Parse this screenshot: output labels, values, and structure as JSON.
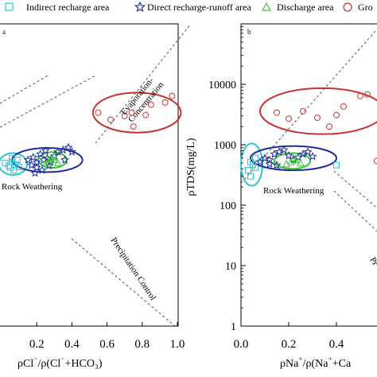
{
  "legend": {
    "entries": [
      {
        "label": "Indirect recharge area",
        "marker": "square-open",
        "color": "#29c5d6"
      },
      {
        "label": "Direct recharge-runoff area",
        "marker": "star-open",
        "color": "#1c2d9e"
      },
      {
        "label": "Discharge area",
        "marker": "triangle-open",
        "color": "#3cc23c"
      },
      {
        "label": "Gro",
        "marker": "circle-open",
        "color": "#c83232"
      }
    ]
  },
  "chart_data": [
    {
      "type": "scatter",
      "panel_label": "a",
      "xlabel_parts": [
        "ρCl",
        "⁻",
        "/ρ(Cl",
        "⁻",
        "+HCO",
        "₃",
        ")"
      ],
      "xlim": [
        0.0,
        1.0
      ],
      "x_ticks": [
        0.2,
        0.4,
        0.6,
        0.8,
        1.0
      ],
      "x_tick_labels": [
        "0.2",
        "0.4",
        "0.6",
        "0.8",
        "1.0"
      ],
      "ylog": true,
      "ylim": [
        1,
        100000
      ],
      "annotations": [
        "Evaporation-Concentration",
        "Rock Weathering",
        "Precipitation Control"
      ],
      "series": [
        {
          "name": "Indirect recharge area",
          "marker": "square",
          "color": "#29c5d6",
          "points": [
            [
              0.05,
              420
            ],
            [
              0.06,
              520
            ],
            [
              0.08,
              470
            ],
            [
              0.07,
              380
            ],
            [
              0.04,
              450
            ],
            [
              0.09,
              560
            ],
            [
              0.1,
              430
            ],
            [
              0.06,
              600
            ],
            [
              0.02,
              500
            ]
          ]
        },
        {
          "name": "Direct recharge-runoff area",
          "marker": "star",
          "color": "#1c2d9e",
          "points": [
            [
              0.15,
              560
            ],
            [
              0.18,
              620
            ],
            [
              0.2,
              510
            ],
            [
              0.22,
              700
            ],
            [
              0.24,
              560
            ],
            [
              0.26,
              600
            ],
            [
              0.28,
              520
            ],
            [
              0.3,
              650
            ],
            [
              0.32,
              760
            ],
            [
              0.35,
              820
            ],
            [
              0.38,
              900
            ],
            [
              0.25,
              800
            ],
            [
              0.2,
              420
            ],
            [
              0.17,
              460
            ],
            [
              0.27,
              450
            ],
            [
              0.23,
              380
            ],
            [
              0.36,
              560
            ],
            [
              0.4,
              760
            ],
            [
              0.19,
              340
            ]
          ]
        },
        {
          "name": "Discharge area",
          "marker": "triangle",
          "color": "#3cc23c",
          "points": [
            [
              0.25,
              480
            ],
            [
              0.27,
              520
            ],
            [
              0.3,
              560
            ],
            [
              0.28,
              600
            ],
            [
              0.32,
              500
            ],
            [
              0.3,
              640
            ],
            [
              0.26,
              580
            ]
          ]
        },
        {
          "name": "Gro",
          "marker": "circle",
          "color": "#c83232",
          "points": [
            [
              0.55,
              3400
            ],
            [
              0.62,
              2600
            ],
            [
              0.7,
              3000
            ],
            [
              0.74,
              3400
            ],
            [
              0.75,
              2000
            ],
            [
              0.82,
              3100
            ],
            [
              0.85,
              4600
            ],
            [
              0.93,
              5000
            ],
            [
              0.97,
              6400
            ]
          ]
        }
      ],
      "ellipses": [
        {
          "color": "#29c5d6",
          "cx": 0.065,
          "cy": 480,
          "rx": 0.08,
          "ry_log": 0.18
        },
        {
          "color": "#1c2d9e",
          "cx": 0.26,
          "cy": 560,
          "rx": 0.2,
          "ry_log": 0.2
        },
        {
          "color": "#3cc23c",
          "cx": 0.29,
          "cy": 560,
          "rx": 0.08,
          "ry_log": 0.13
        },
        {
          "color": "#c83232",
          "cx": 0.77,
          "cy": 3400,
          "rx": 0.25,
          "ry_log": 0.33
        }
      ]
    },
    {
      "type": "scatter",
      "panel_label": "b",
      "xlabel_parts": [
        "ρNa",
        "⁺",
        "/ρ(Na",
        "⁺",
        "+Ca"
      ],
      "ylabel": "ρTDS(mg/L)",
      "xlim": [
        0.0,
        0.6
      ],
      "x_ticks": [
        0.0,
        0.2,
        0.4
      ],
      "x_tick_labels": [
        "0.0",
        "0.2",
        "0.4"
      ],
      "ylog": true,
      "ylim": [
        1,
        100000
      ],
      "y_ticks": [
        1,
        10,
        100,
        1000,
        10000
      ],
      "y_tick_labels": [
        "1",
        "10",
        "100",
        "1000",
        "10000"
      ],
      "annotations": [
        "Rock Weathering",
        "Pr"
      ],
      "series": [
        {
          "name": "Indirect recharge area",
          "marker": "square",
          "color": "#29c5d6",
          "points": [
            [
              0.03,
              380
            ],
            [
              0.04,
              520
            ],
            [
              0.05,
              470
            ],
            [
              0.06,
              600
            ],
            [
              0.04,
              300
            ],
            [
              0.06,
              420
            ],
            [
              0.4,
              460
            ]
          ]
        },
        {
          "name": "Direct recharge-runoff area",
          "marker": "star",
          "color": "#1c2d9e",
          "points": [
            [
              0.08,
              520
            ],
            [
              0.1,
              600
            ],
            [
              0.12,
              560
            ],
            [
              0.14,
              700
            ],
            [
              0.16,
              760
            ],
            [
              0.18,
              820
            ],
            [
              0.2,
              660
            ],
            [
              0.22,
              560
            ],
            [
              0.24,
              620
            ],
            [
              0.26,
              700
            ],
            [
              0.28,
              760
            ],
            [
              0.3,
              640
            ],
            [
              0.15,
              460
            ],
            [
              0.12,
              480
            ]
          ]
        },
        {
          "name": "Discharge area",
          "marker": "triangle",
          "color": "#3cc23c",
          "points": [
            [
              0.19,
              480
            ],
            [
              0.21,
              520
            ],
            [
              0.23,
              560
            ],
            [
              0.22,
              600
            ],
            [
              0.25,
              500
            ]
          ]
        },
        {
          "name": "Gro",
          "marker": "circle",
          "color": "#c83232",
          "points": [
            [
              0.15,
              3400
            ],
            [
              0.2,
              2700
            ],
            [
              0.26,
              3600
            ],
            [
              0.32,
              2800
            ],
            [
              0.37,
              2000
            ],
            [
              0.4,
              3100
            ],
            [
              0.43,
              4300
            ],
            [
              0.5,
              6400
            ],
            [
              0.53,
              6800
            ],
            [
              0.57,
              540
            ]
          ]
        }
      ],
      "ellipses": [
        {
          "color": "#29c5d6",
          "cx": 0.045,
          "cy": 470,
          "rx": 0.045,
          "ry_log": 0.35
        },
        {
          "color": "#1c2d9e",
          "cx": 0.22,
          "cy": 600,
          "rx": 0.18,
          "ry_log": 0.2
        },
        {
          "color": "#3cc23c",
          "cx": 0.215,
          "cy": 540,
          "rx": 0.075,
          "ry_log": 0.13
        },
        {
          "color": "#c83232",
          "cx": 0.34,
          "cy": 3600,
          "rx": 0.26,
          "ry_log": 0.38
        }
      ]
    }
  ]
}
